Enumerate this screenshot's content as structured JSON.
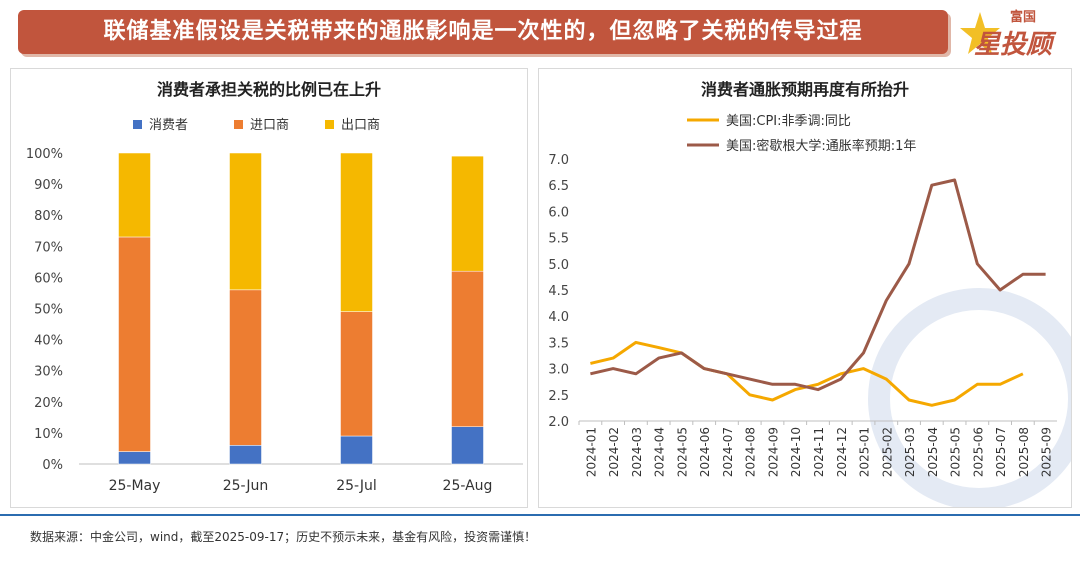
{
  "header": {
    "title": "联储基准假设是关税带来的通胀影响是一次性的，但忽略了关税的传导过程",
    "logo_top": "富国",
    "logo_main": "星投顾"
  },
  "chart_data": [
    {
      "type": "bar",
      "stacked": true,
      "title": "消费者承担关税的比例已在上升",
      "categories": [
        "25-May",
        "25-Jun",
        "25-Jul",
        "25-Aug"
      ],
      "series": [
        {
          "name": "消费者",
          "color": "#4472c4",
          "values": [
            4,
            6,
            9,
            12
          ]
        },
        {
          "name": "进口商",
          "color": "#ed7d31",
          "values": [
            69,
            50,
            40,
            50
          ]
        },
        {
          "name": "出口商",
          "color": "#f5b800",
          "values": [
            27,
            44,
            51,
            37
          ]
        }
      ],
      "ylim": [
        0,
        100
      ],
      "yticks": [
        "0%",
        "10%",
        "20%",
        "30%",
        "40%",
        "50%",
        "60%",
        "70%",
        "80%",
        "90%",
        "100%"
      ],
      "legend": "top",
      "grid": false
    },
    {
      "type": "line",
      "title": "消费者通胀预期再度有所抬升",
      "x": [
        "2024-01",
        "2024-02",
        "2024-03",
        "2024-04",
        "2024-05",
        "2024-06",
        "2024-07",
        "2024-08",
        "2024-09",
        "2024-10",
        "2024-11",
        "2024-12",
        "2025-01",
        "2025-02",
        "2025-03",
        "2025-04",
        "2025-05",
        "2025-06",
        "2025-07",
        "2025-08",
        "2025-09"
      ],
      "series": [
        {
          "name": "美国:CPI:非季调:同比",
          "color": "#f5a800",
          "values": [
            3.1,
            3.2,
            3.5,
            3.4,
            3.3,
            3.0,
            2.9,
            2.5,
            2.4,
            2.6,
            2.7,
            2.9,
            3.0,
            2.8,
            2.4,
            2.3,
            2.4,
            2.7,
            2.7,
            2.9,
            null
          ]
        },
        {
          "name": "美国:密歇根大学:通胀率预期:1年",
          "color": "#9c5a48",
          "values": [
            2.9,
            3.0,
            2.9,
            3.2,
            3.3,
            3.0,
            2.9,
            2.8,
            2.7,
            2.7,
            2.6,
            2.8,
            3.3,
            4.3,
            5.0,
            6.5,
            6.6,
            5.0,
            4.5,
            4.8,
            4.8
          ]
        }
      ],
      "ylim": [
        2.0,
        7.0
      ],
      "yticks": [
        "2.0",
        "2.5",
        "3.0",
        "3.5",
        "4.0",
        "4.5",
        "5.0",
        "5.5",
        "6.0",
        "6.5",
        "7.0"
      ],
      "legend": "top-left",
      "grid": false
    }
  ],
  "footer": {
    "source": "数据来源：中金公司，wind，截至2025-09-17；历史不预示未来，基金有风险，投资需谨慎！"
  }
}
